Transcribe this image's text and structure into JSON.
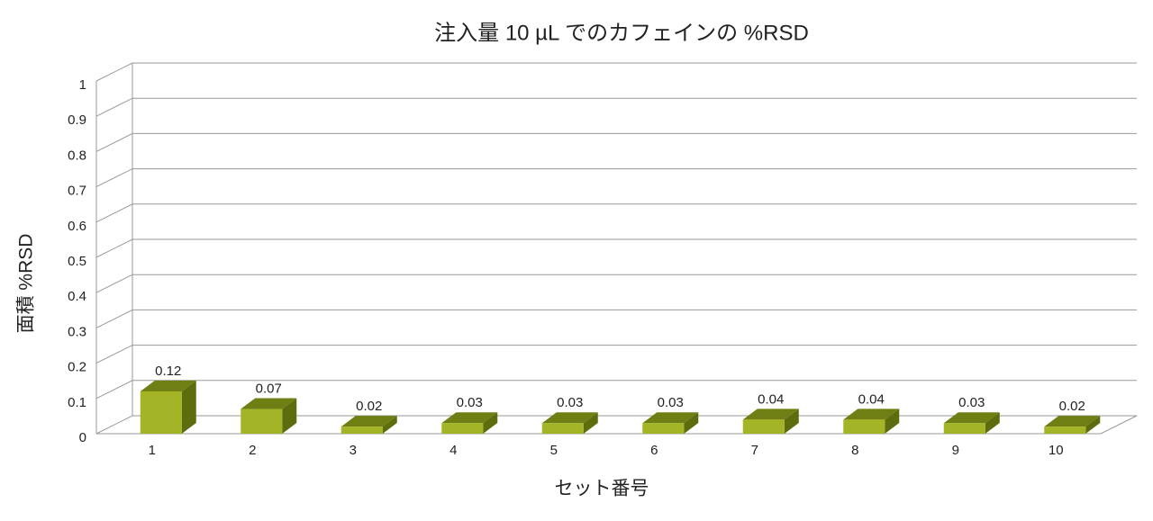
{
  "chart_data": {
    "type": "bar3d",
    "title": "注入量 10 µL でのカフェインの %RSD",
    "x_label": "セット番号",
    "y_label": "面積 %RSD",
    "categories": [
      "1",
      "2",
      "3",
      "4",
      "5",
      "6",
      "7",
      "8",
      "9",
      "10"
    ],
    "values": [
      0.12,
      0.07,
      0.02,
      0.03,
      0.03,
      0.03,
      0.04,
      0.04,
      0.03,
      0.02
    ],
    "color": "#a3b526",
    "ylim": [
      0,
      1
    ],
    "yticks": [
      0,
      0.1,
      0.2,
      0.3,
      0.4,
      0.5,
      0.6,
      0.7,
      0.8,
      0.9,
      1
    ],
    "grid": true
  }
}
